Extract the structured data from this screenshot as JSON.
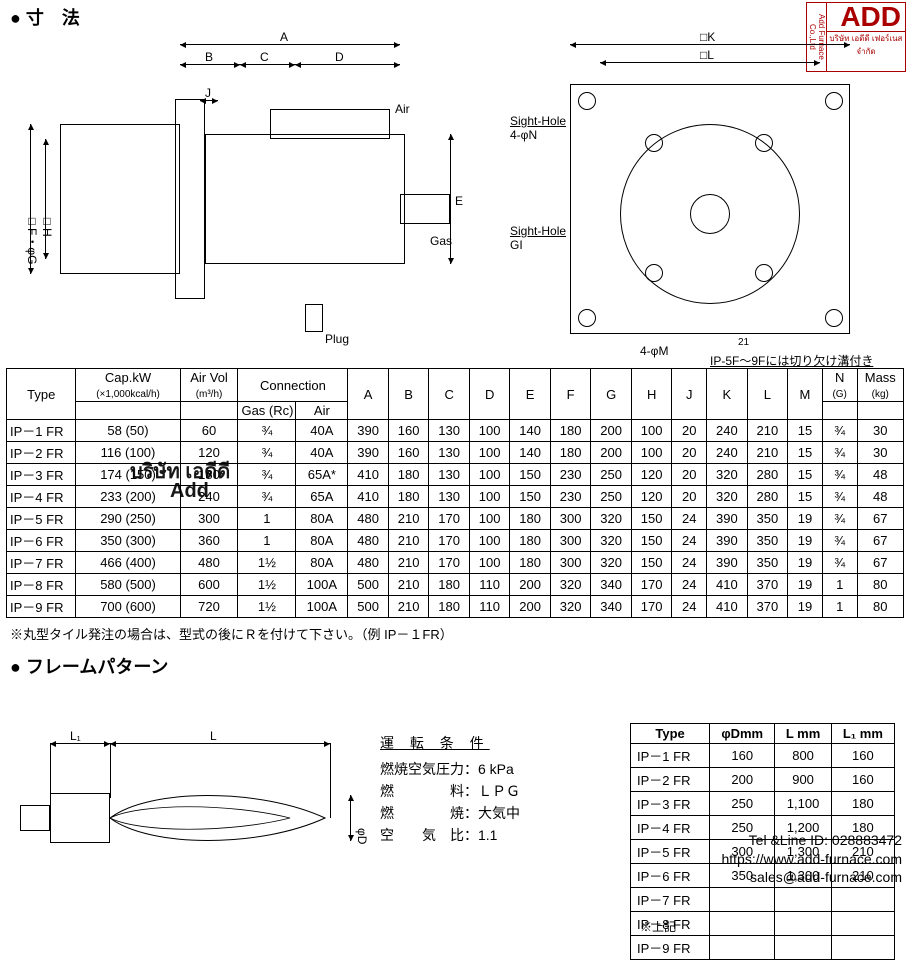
{
  "section_dimensions_title": "寸　法",
  "section_flame_title": "フレームパターン",
  "side_view": {
    "dim_A": "A",
    "dim_B": "B",
    "dim_C": "C",
    "dim_D": "D",
    "dim_J": "J",
    "dim_F": "□F・φG",
    "dim_H": "□H",
    "dim_E": "E",
    "air_label": "Air",
    "gas_label": "Gas",
    "plug_label": "Plug"
  },
  "front_view": {
    "dim_K": "□K",
    "dim_L": "□L",
    "sight_hole_n_label": "Sight-Hole",
    "sight_hole_n_sub": "4-φN",
    "sight_hole_g_label": "Sight-Hole",
    "sight_hole_g_sub": "GI",
    "m_label": "4-φM",
    "a_dim": "21",
    "note": "IP-5F～9Fには切り欠け溝付き"
  },
  "main_table": {
    "headers": {
      "type": "Type",
      "cap": "Cap.kW",
      "cap_sub": "(×1,000kcal/h)",
      "airvol": "Air Vol",
      "airvol_sub": "(m³/h)",
      "conn": "Connection",
      "gas_rc": "Gas (Rc)",
      "air": "Air",
      "A": "A",
      "B": "B",
      "C": "C",
      "D": "D",
      "E": "E",
      "F": "F",
      "G": "G",
      "H": "H",
      "J": "J",
      "K": "K",
      "L": "L",
      "M": "M",
      "N": "N",
      "N_sub": "(G)",
      "mass": "Mass",
      "mass_sub": "(kg)"
    },
    "rows": [
      {
        "type": "IP－1 FR",
        "cap": "58 (50)",
        "air": "60",
        "gas": "¾",
        "airc": "40A",
        "A": "390",
        "B": "160",
        "C": "130",
        "D": "100",
        "E": "140",
        "F": "180",
        "G": "200",
        "H": "100",
        "J": "20",
        "K": "240",
        "L": "210",
        "M": "15",
        "N": "¾",
        "mass": "30"
      },
      {
        "type": "IP－2 FR",
        "cap": "116 (100)",
        "air": "120",
        "gas": "¾",
        "airc": "40A",
        "A": "390",
        "B": "160",
        "C": "130",
        "D": "100",
        "E": "140",
        "F": "180",
        "G": "200",
        "H": "100",
        "J": "20",
        "K": "240",
        "L": "210",
        "M": "15",
        "N": "¾",
        "mass": "30"
      },
      {
        "type": "IP－3 FR",
        "cap": "174 (150)",
        "air": "180",
        "gas": "¾",
        "airc": "65A*",
        "A": "410",
        "B": "180",
        "C": "130",
        "D": "100",
        "E": "150",
        "F": "230",
        "G": "250",
        "H": "120",
        "J": "20",
        "K": "320",
        "L": "280",
        "M": "15",
        "N": "¾",
        "mass": "48"
      },
      {
        "type": "IP－4 FR",
        "cap": "233 (200)",
        "air": "240",
        "gas": "¾",
        "airc": "65A",
        "A": "410",
        "B": "180",
        "C": "130",
        "D": "100",
        "E": "150",
        "F": "230",
        "G": "250",
        "H": "120",
        "J": "20",
        "K": "320",
        "L": "280",
        "M": "15",
        "N": "¾",
        "mass": "48"
      },
      {
        "type": "IP－5 FR",
        "cap": "290 (250)",
        "air": "300",
        "gas": "1",
        "airc": "80A",
        "A": "480",
        "B": "210",
        "C": "170",
        "D": "100",
        "E": "180",
        "F": "300",
        "G": "320",
        "H": "150",
        "J": "24",
        "K": "390",
        "L": "350",
        "M": "19",
        "N": "¾",
        "mass": "67"
      },
      {
        "type": "IP－6 FR",
        "cap": "350 (300)",
        "air": "360",
        "gas": "1",
        "airc": "80A",
        "A": "480",
        "B": "210",
        "C": "170",
        "D": "100",
        "E": "180",
        "F": "300",
        "G": "320",
        "H": "150",
        "J": "24",
        "K": "390",
        "L": "350",
        "M": "19",
        "N": "¾",
        "mass": "67"
      },
      {
        "type": "IP－7 FR",
        "cap": "466 (400)",
        "air": "480",
        "gas": "1½",
        "airc": "80A",
        "A": "480",
        "B": "210",
        "C": "170",
        "D": "100",
        "E": "180",
        "F": "300",
        "G": "320",
        "H": "150",
        "J": "24",
        "K": "390",
        "L": "350",
        "M": "19",
        "N": "¾",
        "mass": "67"
      },
      {
        "type": "IP－8 FR",
        "cap": "580 (500)",
        "air": "600",
        "gas": "1½",
        "airc": "100A",
        "A": "500",
        "B": "210",
        "C": "180",
        "D": "110",
        "E": "200",
        "F": "320",
        "G": "340",
        "H": "170",
        "J": "24",
        "K": "410",
        "L": "370",
        "M": "19",
        "N": "1",
        "mass": "80"
      },
      {
        "type": "IP－9 FR",
        "cap": "700 (600)",
        "air": "720",
        "gas": "1½",
        "airc": "100A",
        "A": "500",
        "B": "210",
        "C": "180",
        "D": "110",
        "E": "200",
        "F": "320",
        "G": "340",
        "H": "170",
        "J": "24",
        "K": "410",
        "L": "370",
        "M": "19",
        "N": "1",
        "mass": "80"
      }
    ],
    "note": "※丸型タイル発注の場合は、型式の後にＲを付けて下さい。（例 IP－１FR）"
  },
  "flame_drawing": {
    "L1": "L₁",
    "L": "L",
    "D": "φD"
  },
  "conditions": {
    "title": "運 転 条 件",
    "rows": [
      {
        "label": "燃焼空気圧力：",
        "value": "6 kPa"
      },
      {
        "label": "燃　　　　料：",
        "value": "ＬＰＧ"
      },
      {
        "label": "燃　　　　焼：",
        "value": "大気中"
      },
      {
        "label": "空　　気　比：",
        "value": "1.1"
      }
    ]
  },
  "flame_table": {
    "headers": {
      "type": "Type",
      "D": "φDmm",
      "L": "L mm",
      "L1": "L₁ mm"
    },
    "rows": [
      {
        "type": "IP－1 FR",
        "D": "160",
        "L": "800",
        "L1": "160"
      },
      {
        "type": "IP－2 FR",
        "D": "200",
        "L": "900",
        "L1": "160"
      },
      {
        "type": "IP－3 FR",
        "D": "250",
        "L": "1,100",
        "L1": "180"
      },
      {
        "type": "IP－4 FR",
        "D": "250",
        "L": "1,200",
        "L1": "180"
      },
      {
        "type": "IP－5 FR",
        "D": "300",
        "L": "1,300",
        "L1": "210"
      },
      {
        "type": "IP－6 FR",
        "D": "350",
        "L": "1,300",
        "L1": "210"
      },
      {
        "type": "IP－7 FR",
        "D": "",
        "L": "",
        "L1": ""
      },
      {
        "type": "IP－8 FR",
        "D": "",
        "L": "",
        "L1": ""
      },
      {
        "type": "IP－9 FR",
        "D": "",
        "L": "",
        "L1": ""
      }
    ],
    "note_below": "※上記"
  },
  "watermark": {
    "line1": "บริษัท เอดีดี",
    "line2": "Add"
  },
  "corner": {
    "vertical": "Add Furnace Co.,Ltd",
    "add": "ADD",
    "thai": "บริษัท เอดีดี เฟอร์เนส จำกัด"
  },
  "footer": {
    "l1": "Tel &Line ID: 028883472",
    "l2": "https://www.add-furnace.com",
    "l3": "sales@add-furnace.com"
  }
}
